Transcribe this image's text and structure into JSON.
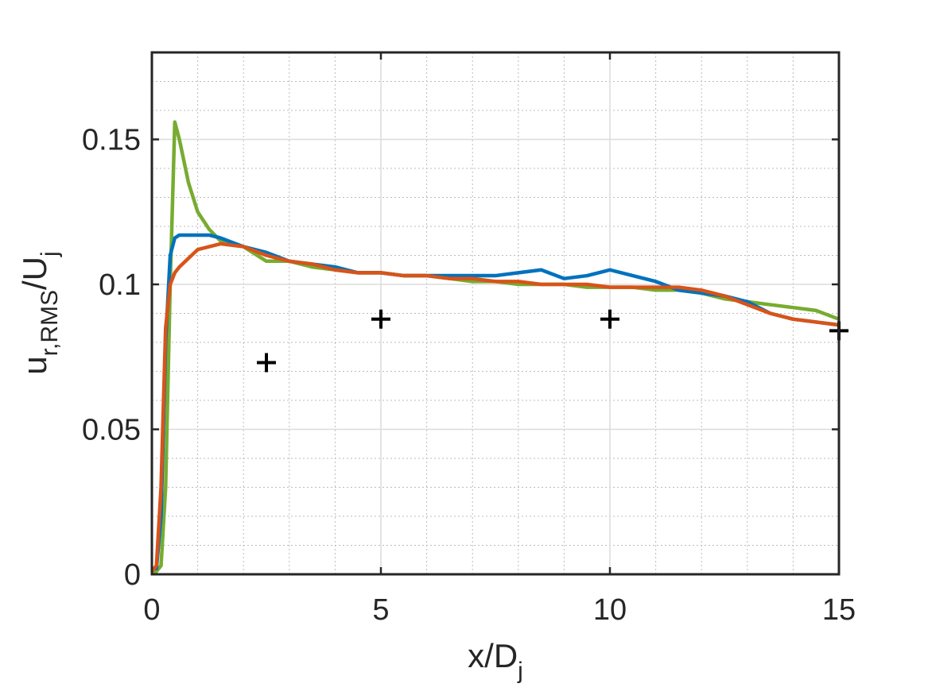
{
  "chart_data": {
    "type": "line",
    "xlabel": {
      "text": "x/D",
      "subscript": "j"
    },
    "ylabel": {
      "text": "u",
      "subscript": "r,RMS",
      "text2": "/U",
      "subscript2": "j"
    },
    "x": [
      0,
      0.1,
      0.2,
      0.3,
      0.4,
      0.5,
      0.6,
      0.8,
      1,
      1.25,
      1.5,
      2,
      2.5,
      3,
      3.5,
      4,
      4.5,
      5,
      5.5,
      6,
      6.5,
      7,
      7.5,
      8,
      8.5,
      9,
      9.5,
      10,
      10.5,
      11,
      11.5,
      12,
      12.5,
      13,
      13.5,
      14,
      14.5,
      15
    ],
    "series": [
      {
        "color": "#77ac30",
        "values": [
          0.001,
          0.001,
          0.003,
          0.03,
          0.1,
          0.156,
          0.15,
          0.135,
          0.125,
          0.119,
          0.115,
          0.113,
          0.108,
          0.108,
          0.106,
          0.105,
          0.104,
          0.104,
          0.103,
          0.103,
          0.102,
          0.101,
          0.101,
          0.1,
          0.1,
          0.1,
          0.099,
          0.099,
          0.099,
          0.098,
          0.098,
          0.097,
          0.095,
          0.094,
          0.093,
          0.092,
          0.091,
          0.088
        ]
      },
      {
        "color": "#0072bd",
        "values": [
          0.002,
          0.002,
          0.02,
          0.08,
          0.11,
          0.116,
          0.117,
          0.117,
          0.117,
          0.117,
          0.116,
          0.113,
          0.111,
          0.108,
          0.107,
          0.106,
          0.104,
          0.104,
          0.103,
          0.103,
          0.103,
          0.103,
          0.103,
          0.104,
          0.105,
          0.102,
          0.103,
          0.105,
          0.103,
          0.101,
          0.098,
          0.097,
          0.096,
          0.094,
          0.09,
          0.088,
          0.087,
          0.086
        ]
      },
      {
        "color": "#d95319",
        "values": [
          0.001,
          0.003,
          0.03,
          0.085,
          0.1,
          0.104,
          0.106,
          0.109,
          0.112,
          0.113,
          0.114,
          0.113,
          0.11,
          0.108,
          0.107,
          0.105,
          0.104,
          0.104,
          0.103,
          0.103,
          0.102,
          0.102,
          0.101,
          0.101,
          0.1,
          0.1,
          0.1,
          0.099,
          0.099,
          0.099,
          0.099,
          0.098,
          0.096,
          0.093,
          0.09,
          0.088,
          0.087,
          0.086
        ]
      }
    ],
    "markers": {
      "x": [
        2.5,
        5,
        10,
        15
      ],
      "values": [
        0.073,
        0.088,
        0.088,
        0.084
      ],
      "color": "#000000"
    },
    "xlim": [
      0,
      15
    ],
    "ylim": [
      0,
      0.18
    ],
    "xticks": [
      0,
      5,
      10,
      15
    ],
    "yticks": [
      0,
      0.05,
      0.1,
      0.15
    ],
    "grid": true,
    "minor_grid": true
  }
}
